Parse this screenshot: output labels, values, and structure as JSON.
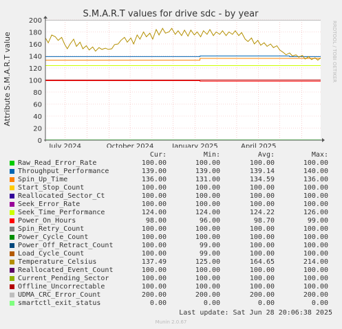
{
  "watermark": "RRDTOOL / TOBI OETIKER",
  "footer": {
    "last_update": "Last update: Sat Jun 28 20:06:38 2025",
    "munin_version": "Munin 2.0.67"
  },
  "legend_header": {
    "cur": "Cur:",
    "min": "Min:",
    "avg": "Avg:",
    "max": "Max:"
  },
  "chart_data": {
    "type": "line",
    "title": "S.M.A.R.T values for drive sdc - by year",
    "ylabel": "Attribute S.M.A.R.T value",
    "xlabel": "",
    "ylim": [
      0,
      200
    ],
    "yticks": [
      0,
      20,
      40,
      60,
      80,
      100,
      120,
      140,
      160,
      180,
      200
    ],
    "grid": true,
    "x_tick_labels": [
      "July 2024",
      "October 2024",
      "January 2025",
      "April 2025"
    ],
    "x_tick_dates": [
      "2024-07-01",
      "2024-10-01",
      "2025-01-01",
      "2025-04-01"
    ],
    "x_range": [
      "2024-06-03",
      "2025-06-28"
    ],
    "series": [
      {
        "name": "Raw_Read_Error_Rate",
        "color": "#00cc00",
        "cur": "100.00",
        "min": "100.00",
        "avg": "100.00",
        "max": "100.00",
        "points": [
          [
            "2024-06-03",
            100
          ],
          [
            "2025-06-28",
            100
          ]
        ]
      },
      {
        "name": "Throughput_Performance",
        "color": "#0066b3",
        "cur": "139.00",
        "min": "139.00",
        "avg": "139.14",
        "max": "140.00",
        "points": [
          [
            "2024-06-03",
            139
          ],
          [
            "2025-01-08",
            139
          ],
          [
            "2025-01-08",
            140
          ],
          [
            "2025-05-15",
            140
          ],
          [
            "2025-05-15",
            139
          ],
          [
            "2025-06-28",
            139
          ]
        ]
      },
      {
        "name": "Spin_Up_Time",
        "color": "#ff8000",
        "cur": "136.00",
        "min": "131.00",
        "avg": "134.59",
        "max": "136.00",
        "points": [
          [
            "2024-06-03",
            133
          ],
          [
            "2025-01-08",
            133
          ],
          [
            "2025-01-08",
            136
          ],
          [
            "2025-06-28",
            136
          ]
        ]
      },
      {
        "name": "Start_Stop_Count",
        "color": "#ffcc00",
        "cur": "100.00",
        "min": "100.00",
        "avg": "100.00",
        "max": "100.00",
        "points": [
          [
            "2024-06-03",
            100
          ],
          [
            "2025-06-28",
            100
          ]
        ]
      },
      {
        "name": "Reallocated_Sector_Ct",
        "color": "#330099",
        "cur": "100.00",
        "min": "100.00",
        "avg": "100.00",
        "max": "100.00",
        "points": [
          [
            "2024-06-03",
            100
          ],
          [
            "2025-06-28",
            100
          ]
        ]
      },
      {
        "name": "Seek_Error_Rate",
        "color": "#990099",
        "cur": "100.00",
        "min": "100.00",
        "avg": "100.00",
        "max": "100.00",
        "points": [
          [
            "2024-06-03",
            100
          ],
          [
            "2025-06-28",
            100
          ]
        ]
      },
      {
        "name": "Seek_Time_Performance",
        "color": "#ccff00",
        "cur": "124.00",
        "min": "124.00",
        "avg": "124.22",
        "max": "126.00",
        "points": [
          [
            "2024-06-03",
            124
          ],
          [
            "2025-06-28",
            124
          ]
        ]
      },
      {
        "name": "Power_On_Hours",
        "color": "#ff0000",
        "cur": "98.00",
        "min": "96.00",
        "avg": "98.70",
        "max": "99.00",
        "points": [
          [
            "2024-06-03",
            99
          ],
          [
            "2025-01-08",
            99
          ],
          [
            "2025-01-08",
            98
          ],
          [
            "2025-06-28",
            98
          ]
        ]
      },
      {
        "name": "Spin_Retry_Count",
        "color": "#808080",
        "cur": "100.00",
        "min": "100.00",
        "avg": "100.00",
        "max": "100.00",
        "points": [
          [
            "2024-06-03",
            100
          ],
          [
            "2025-06-28",
            100
          ]
        ]
      },
      {
        "name": "Power_Cycle_Count",
        "color": "#008f00",
        "cur": "100.00",
        "min": "100.00",
        "avg": "100.00",
        "max": "100.00",
        "points": [
          [
            "2024-06-03",
            100
          ],
          [
            "2025-06-28",
            100
          ]
        ]
      },
      {
        "name": "Power_Off_Retract_Count",
        "color": "#00487d",
        "cur": "100.00",
        "min": "99.00",
        "avg": "100.00",
        "max": "100.00",
        "points": [
          [
            "2024-06-03",
            100
          ],
          [
            "2025-06-28",
            100
          ]
        ]
      },
      {
        "name": "Load_Cycle_Count",
        "color": "#b35a00",
        "cur": "100.00",
        "min": "99.00",
        "avg": "100.00",
        "max": "100.00",
        "points": [
          [
            "2024-06-03",
            100
          ],
          [
            "2025-06-28",
            100
          ]
        ]
      },
      {
        "name": "Temperature_Celsius",
        "color": "#b38f00",
        "cur": "137.49",
        "min": "125.00",
        "avg": "164.65",
        "max": "214.00",
        "points": [
          [
            "2024-06-03",
            170
          ],
          [
            "2024-06-07",
            162
          ],
          [
            "2024-06-12",
            175
          ],
          [
            "2024-06-17",
            172
          ],
          [
            "2024-06-21",
            166
          ],
          [
            "2024-06-26",
            171
          ],
          [
            "2024-06-30",
            160
          ],
          [
            "2024-07-04",
            152
          ],
          [
            "2024-07-08",
            160
          ],
          [
            "2024-07-13",
            168
          ],
          [
            "2024-07-17",
            156
          ],
          [
            "2024-07-22",
            163
          ],
          [
            "2024-07-26",
            152
          ],
          [
            "2024-07-31",
            157
          ],
          [
            "2024-08-04",
            150
          ],
          [
            "2024-08-09",
            155
          ],
          [
            "2024-08-13",
            148
          ],
          [
            "2024-08-18",
            154
          ],
          [
            "2024-08-22",
            151
          ],
          [
            "2024-08-27",
            153
          ],
          [
            "2024-08-31",
            151
          ],
          [
            "2024-09-05",
            152
          ],
          [
            "2024-09-09",
            159
          ],
          [
            "2024-09-14",
            160
          ],
          [
            "2024-09-18",
            166
          ],
          [
            "2024-09-23",
            171
          ],
          [
            "2024-09-27",
            163
          ],
          [
            "2024-10-02",
            170
          ],
          [
            "2024-10-06",
            160
          ],
          [
            "2024-10-11",
            175
          ],
          [
            "2024-10-15",
            168
          ],
          [
            "2024-10-20",
            180
          ],
          [
            "2024-10-24",
            172
          ],
          [
            "2024-10-29",
            178
          ],
          [
            "2024-11-02",
            168
          ],
          [
            "2024-11-07",
            184
          ],
          [
            "2024-11-11",
            175
          ],
          [
            "2024-11-16",
            186
          ],
          [
            "2024-11-20",
            178
          ],
          [
            "2024-11-25",
            180
          ],
          [
            "2024-11-29",
            186
          ],
          [
            "2024-12-04",
            176
          ],
          [
            "2024-12-08",
            182
          ],
          [
            "2024-12-13",
            174
          ],
          [
            "2024-12-17",
            183
          ],
          [
            "2024-12-22",
            173
          ],
          [
            "2024-12-26",
            183
          ],
          [
            "2024-12-31",
            175
          ],
          [
            "2025-01-04",
            180
          ],
          [
            "2025-01-09",
            172
          ],
          [
            "2025-01-13",
            182
          ],
          [
            "2025-01-18",
            176
          ],
          [
            "2025-01-22",
            184
          ],
          [
            "2025-01-27",
            174
          ],
          [
            "2025-01-31",
            180
          ],
          [
            "2025-02-05",
            176
          ],
          [
            "2025-02-09",
            182
          ],
          [
            "2025-02-14",
            174
          ],
          [
            "2025-02-18",
            180
          ],
          [
            "2025-02-23",
            176
          ],
          [
            "2025-02-27",
            182
          ],
          [
            "2025-03-04",
            174
          ],
          [
            "2025-03-08",
            179
          ],
          [
            "2025-03-13",
            168
          ],
          [
            "2025-03-17",
            164
          ],
          [
            "2025-03-22",
            170
          ],
          [
            "2025-03-26",
            160
          ],
          [
            "2025-03-31",
            166
          ],
          [
            "2025-04-04",
            158
          ],
          [
            "2025-04-09",
            162
          ],
          [
            "2025-04-13",
            156
          ],
          [
            "2025-04-18",
            160
          ],
          [
            "2025-04-22",
            154
          ],
          [
            "2025-04-27",
            157
          ],
          [
            "2025-05-01",
            150
          ],
          [
            "2025-05-06",
            146
          ],
          [
            "2025-05-10",
            142
          ],
          [
            "2025-05-15",
            145
          ],
          [
            "2025-05-19",
            140
          ],
          [
            "2025-05-24",
            142
          ],
          [
            "2025-05-28",
            138
          ],
          [
            "2025-06-02",
            141
          ],
          [
            "2025-06-06",
            135
          ],
          [
            "2025-06-11",
            139
          ],
          [
            "2025-06-15",
            134
          ],
          [
            "2025-06-20",
            137
          ],
          [
            "2025-06-24",
            133
          ],
          [
            "2025-06-28",
            137
          ]
        ]
      },
      {
        "name": "Reallocated_Event_Count",
        "color": "#5c0066",
        "cur": "100.00",
        "min": "100.00",
        "avg": "100.00",
        "max": "100.00",
        "points": [
          [
            "2024-06-03",
            100
          ],
          [
            "2025-06-28",
            100
          ]
        ]
      },
      {
        "name": "Current_Pending_Sector",
        "color": "#8fb300",
        "cur": "100.00",
        "min": "100.00",
        "avg": "100.00",
        "max": "100.00",
        "points": [
          [
            "2024-06-03",
            100
          ],
          [
            "2025-06-28",
            100
          ]
        ]
      },
      {
        "name": "Offline_Uncorrectable",
        "color": "#b30000",
        "cur": "100.00",
        "min": "100.00",
        "avg": "100.00",
        "max": "100.00",
        "points": [
          [
            "2024-06-03",
            100
          ],
          [
            "2025-06-28",
            100
          ]
        ]
      },
      {
        "name": "UDMA_CRC_Error_Count",
        "color": "#bebebe",
        "cur": "200.00",
        "min": "200.00",
        "avg": "200.00",
        "max": "200.00",
        "points": [
          [
            "2024-06-03",
            200
          ],
          [
            "2025-06-28",
            200
          ]
        ]
      },
      {
        "name": "smartctl_exit_status",
        "color": "#80ff80",
        "cur": "0.00",
        "min": "0.00",
        "avg": "0.00",
        "max": "0.00",
        "points": [
          [
            "2024-06-03",
            0
          ],
          [
            "2025-06-28",
            0
          ]
        ]
      }
    ]
  }
}
